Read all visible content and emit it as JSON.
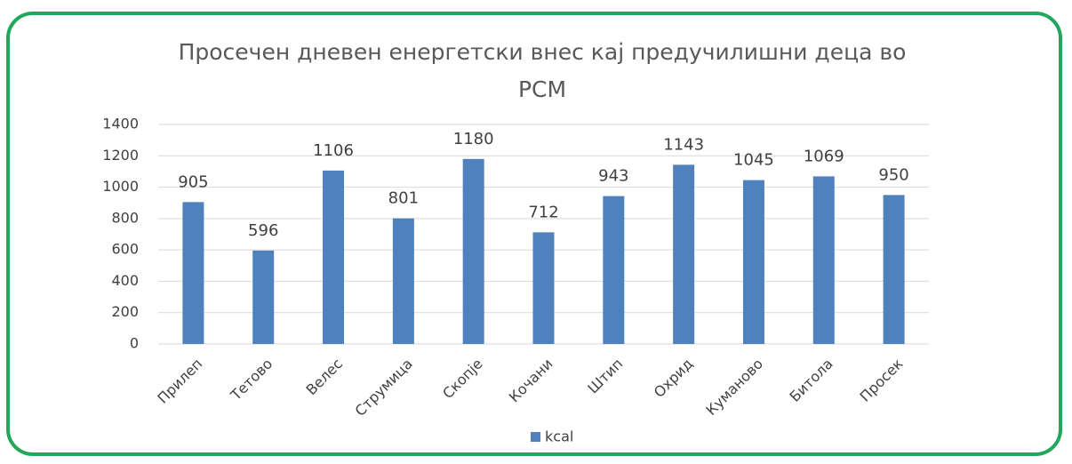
{
  "chart_data": {
    "type": "bar",
    "title": "Просечен дневен енергетски внес кај предучилишни деца во РСМ",
    "categories": [
      "Прилеп",
      "Тетово",
      "Велес",
      "Струмица",
      "Скопје",
      "Кочани",
      "Штип",
      "Охрид",
      "Куманово",
      "Битола",
      "Просек"
    ],
    "series": [
      {
        "name": "kcal",
        "color": "#4f81bd",
        "values": [
          905,
          596,
          1106,
          801,
          1180,
          712,
          943,
          1143,
          1045,
          1069,
          950
        ]
      }
    ],
    "ylim": [
      0,
      1400
    ],
    "yticks": [
      0,
      200,
      400,
      600,
      800,
      1000,
      1200,
      1400
    ],
    "grid": true,
    "legend": "bottom"
  }
}
